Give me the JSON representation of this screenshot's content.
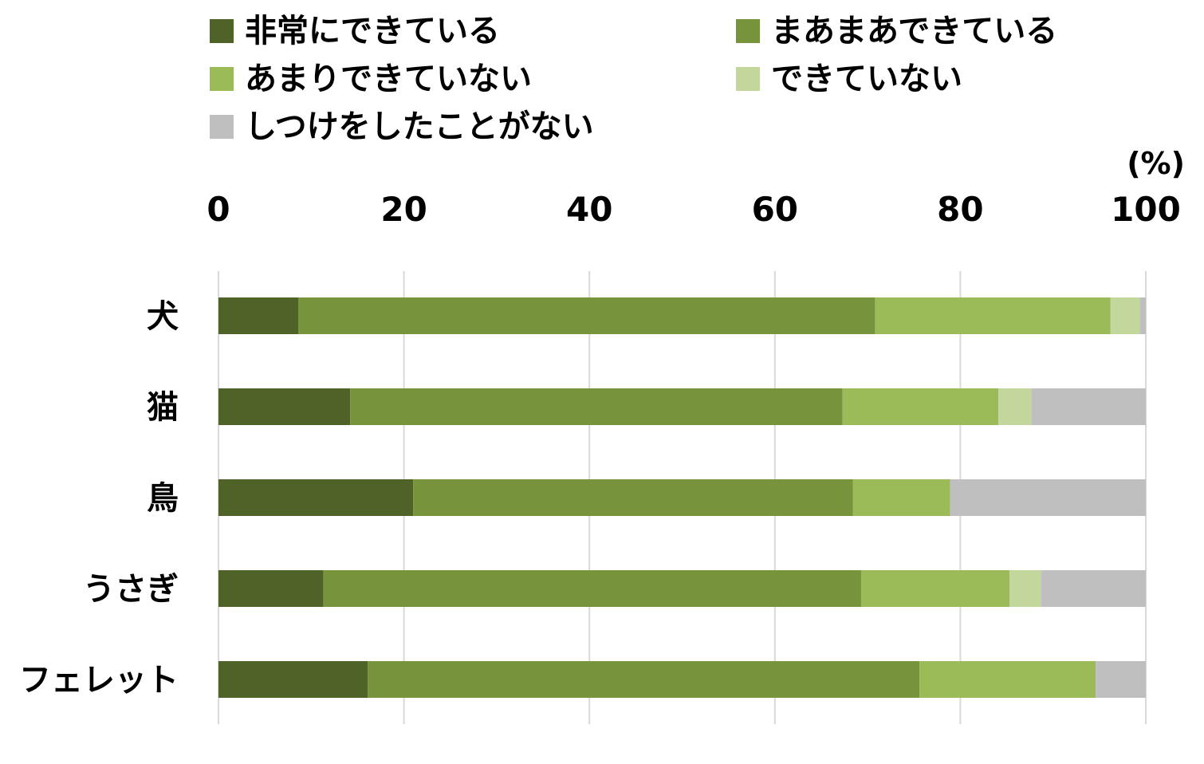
{
  "chart_data": {
    "type": "bar",
    "orientation": "horizontal",
    "stacked": true,
    "unit_label": "(%)",
    "xlim": [
      0,
      100
    ],
    "xticks": [
      0,
      20,
      40,
      60,
      80,
      100
    ],
    "grid": true,
    "legend_position": "top",
    "categories": [
      "犬",
      "猫",
      "鳥",
      "うさぎ",
      "フェレット"
    ],
    "series": [
      {
        "name": "非常にできている",
        "color": "#4f6228",
        "values": [
          8.6,
          14.2,
          21.0,
          11.3,
          16.1
        ]
      },
      {
        "name": "まあまあできている",
        "color": "#77933c",
        "values": [
          62.2,
          53.1,
          47.4,
          58.0,
          59.5
        ]
      },
      {
        "name": "あまりできていない",
        "color": "#9bbb59",
        "values": [
          25.4,
          16.8,
          10.5,
          16.0,
          19.0
        ]
      },
      {
        "name": "できていない",
        "color": "#c3d69b",
        "values": [
          3.2,
          3.6,
          0.0,
          3.4,
          0.0
        ]
      },
      {
        "name": "しつけをしたことがない",
        "color": "#bfbfbf",
        "values": [
          0.6,
          12.3,
          21.1,
          11.3,
          5.4
        ]
      }
    ]
  }
}
